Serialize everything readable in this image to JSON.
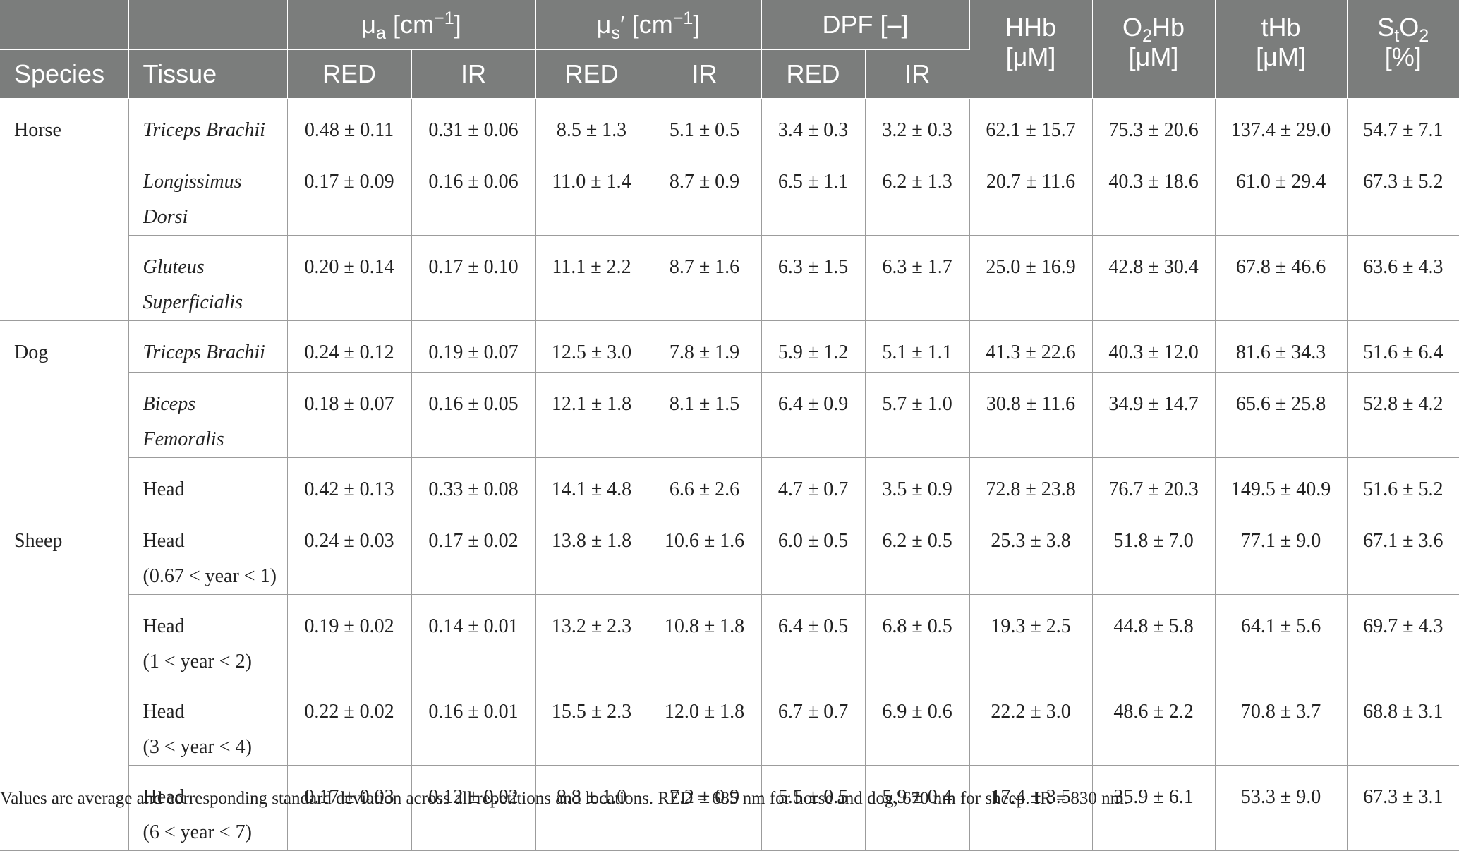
{
  "header": {
    "group_row": {
      "mu_a": "μa [cm−1]",
      "mu_a_base": "μ",
      "mu_a_sub": "a",
      "mu_a_unit": " [cm",
      "mu_a_sup": "−1",
      "mu_a_close": "]",
      "mu_s_base": "μ",
      "mu_s_sub": "s",
      "mu_s_prime": "′ [cm",
      "mu_s_sup": "−1",
      "mu_s_close": "]",
      "dpf": "DPF [–]",
      "hhb_1": "HHb",
      "hhb_2": "[μM]",
      "o2hb_a": "O",
      "o2hb_sub": "2",
      "o2hb_b": "Hb",
      "o2hb_2": "[μM]",
      "thb_1": "tHb",
      "thb_2": "[μM]",
      "sto2_a": "S",
      "sto2_sub1": "t",
      "sto2_b": "O",
      "sto2_sub2": "2",
      "sto2_2": "[%]"
    },
    "sub_row": {
      "species": "Species",
      "tissue": "Tissue",
      "red": "RED",
      "ir": "IR"
    }
  },
  "rows": [
    {
      "species": "Horse",
      "tissue_1": "Triceps Brachii",
      "tissue_2": "",
      "italic": true,
      "mua_red": "0.48 ± 0.11",
      "mua_ir": "0.31 ± 0.06",
      "mus_red": "8.5 ± 1.3",
      "mus_ir": "5.1 ± 0.5",
      "dpf_red": "3.4 ± 0.3",
      "dpf_ir": "3.2 ± 0.3",
      "hhb": "62.1 ± 15.7",
      "o2hb": "75.3 ± 20.6",
      "thb": "137.4 ± 29.0",
      "sto2": "54.7 ± 7.1"
    },
    {
      "species": "",
      "tissue_1": "Longissimus",
      "tissue_2": "Dorsi",
      "italic": true,
      "mua_red": "0.17 ± 0.09",
      "mua_ir": "0.16 ± 0.06",
      "mus_red": "11.0 ± 1.4",
      "mus_ir": "8.7 ± 0.9",
      "dpf_red": "6.5 ± 1.1",
      "dpf_ir": "6.2 ± 1.3",
      "hhb": "20.7 ± 11.6",
      "o2hb": "40.3 ± 18.6",
      "thb": "61.0 ± 29.4",
      "sto2": "67.3 ± 5.2"
    },
    {
      "species": "",
      "tissue_1": "Gluteus",
      "tissue_2": "Superficialis",
      "italic": true,
      "mua_red": "0.20 ± 0.14",
      "mua_ir": "0.17 ± 0.10",
      "mus_red": "11.1 ± 2.2",
      "mus_ir": "8.7 ± 1.6",
      "dpf_red": "6.3 ± 1.5",
      "dpf_ir": "6.3 ± 1.7",
      "hhb": "25.0 ± 16.9",
      "o2hb": "42.8 ± 30.4",
      "thb": "67.8 ± 46.6",
      "sto2": "63.6 ± 4.3"
    },
    {
      "species": "Dog",
      "tissue_1": "Triceps Brachii",
      "tissue_2": "",
      "italic": true,
      "mua_red": "0.24 ± 0.12",
      "mua_ir": "0.19 ± 0.07",
      "mus_red": "12.5 ± 3.0",
      "mus_ir": "7.8 ± 1.9",
      "dpf_red": "5.9 ± 1.2",
      "dpf_ir": "5.1 ± 1.1",
      "hhb": "41.3 ± 22.6",
      "o2hb": "40.3 ± 12.0",
      "thb": "81.6 ± 34.3",
      "sto2": "51.6 ± 6.4"
    },
    {
      "species": "",
      "tissue_1": "Biceps",
      "tissue_2": "Femoralis",
      "italic": true,
      "mua_red": "0.18 ± 0.07",
      "mua_ir": "0.16 ± 0.05",
      "mus_red": "12.1 ± 1.8",
      "mus_ir": "8.1 ± 1.5",
      "dpf_red": "6.4 ± 0.9",
      "dpf_ir": "5.7 ± 1.0",
      "hhb": "30.8 ± 11.6",
      "o2hb": "34.9 ± 14.7",
      "thb": "65.6 ± 25.8",
      "sto2": "52.8 ± 4.2"
    },
    {
      "species": "",
      "tissue_1": "Head",
      "tissue_2": "",
      "italic": false,
      "mua_red": "0.42 ± 0.13",
      "mua_ir": "0.33 ± 0.08",
      "mus_red": "14.1 ± 4.8",
      "mus_ir": "6.6 ± 2.6",
      "dpf_red": "4.7 ± 0.7",
      "dpf_ir": "3.5 ± 0.9",
      "hhb": "72.8 ± 23.8",
      "o2hb": "76.7 ± 20.3",
      "thb": "149.5 ± 40.9",
      "sto2": "51.6 ± 5.2"
    },
    {
      "species": "Sheep",
      "tissue_1": "Head",
      "tissue_2": "(0.67 < year < 1)",
      "italic": false,
      "mua_red": "0.24 ± 0.03",
      "mua_ir": "0.17 ± 0.02",
      "mus_red": "13.8 ± 1.8",
      "mus_ir": "10.6 ± 1.6",
      "dpf_red": "6.0 ± 0.5",
      "dpf_ir": "6.2 ± 0.5",
      "hhb": "25.3 ± 3.8",
      "o2hb": "51.8 ± 7.0",
      "thb": "77.1 ± 9.0",
      "sto2": "67.1 ± 3.6"
    },
    {
      "species": "",
      "tissue_1": "Head",
      "tissue_2": "(1 < year < 2)",
      "italic": false,
      "mua_red": "0.19 ± 0.02",
      "mua_ir": "0.14 ± 0.01",
      "mus_red": "13.2 ± 2.3",
      "mus_ir": "10.8 ± 1.8",
      "dpf_red": "6.4 ± 0.5",
      "dpf_ir": "6.8 ± 0.5",
      "hhb": "19.3 ± 2.5",
      "o2hb": "44.8 ± 5.8",
      "thb": "64.1 ± 5.6",
      "sto2": "69.7 ± 4.3"
    },
    {
      "species": "",
      "tissue_1": "Head",
      "tissue_2": "(3 < year < 4)",
      "italic": false,
      "mua_red": "0.22 ± 0.02",
      "mua_ir": "0.16 ± 0.01",
      "mus_red": "15.5 ± 2.3",
      "mus_ir": "12.0 ± 1.8",
      "dpf_red": "6.7 ± 0.7",
      "dpf_ir": "6.9 ± 0.6",
      "hhb": "22.2 ± 3.0",
      "o2hb": "48.6 ± 2.2",
      "thb": "70.8 ± 3.7",
      "sto2": "68.8 ± 3.1"
    },
    {
      "species": "",
      "tissue_1": "Head",
      "tissue_2": "(6 < year < 7)",
      "italic": false,
      "mua_red": "0.17 ± 0.03",
      "mua_ir": "0.12 ± 0.02",
      "mus_red": "8.8 ± 1.0",
      "mus_ir": "7.2 ± 0.9",
      "dpf_red": "5.5 ± 0.5",
      "dpf_ir": "5.9 ± 0.4",
      "hhb": "17.4 ± 3.5",
      "o2hb": "35.9 ± 6.1",
      "thb": "53.3 ± 9.0",
      "sto2": "67.3 ± 3.1"
    }
  ],
  "footnote": "Values are average and corresponding standard deviation across all repetitions and locations. RED = 685 nm for horse and dog, 670 nm for sheep. IR = 830 nm."
}
